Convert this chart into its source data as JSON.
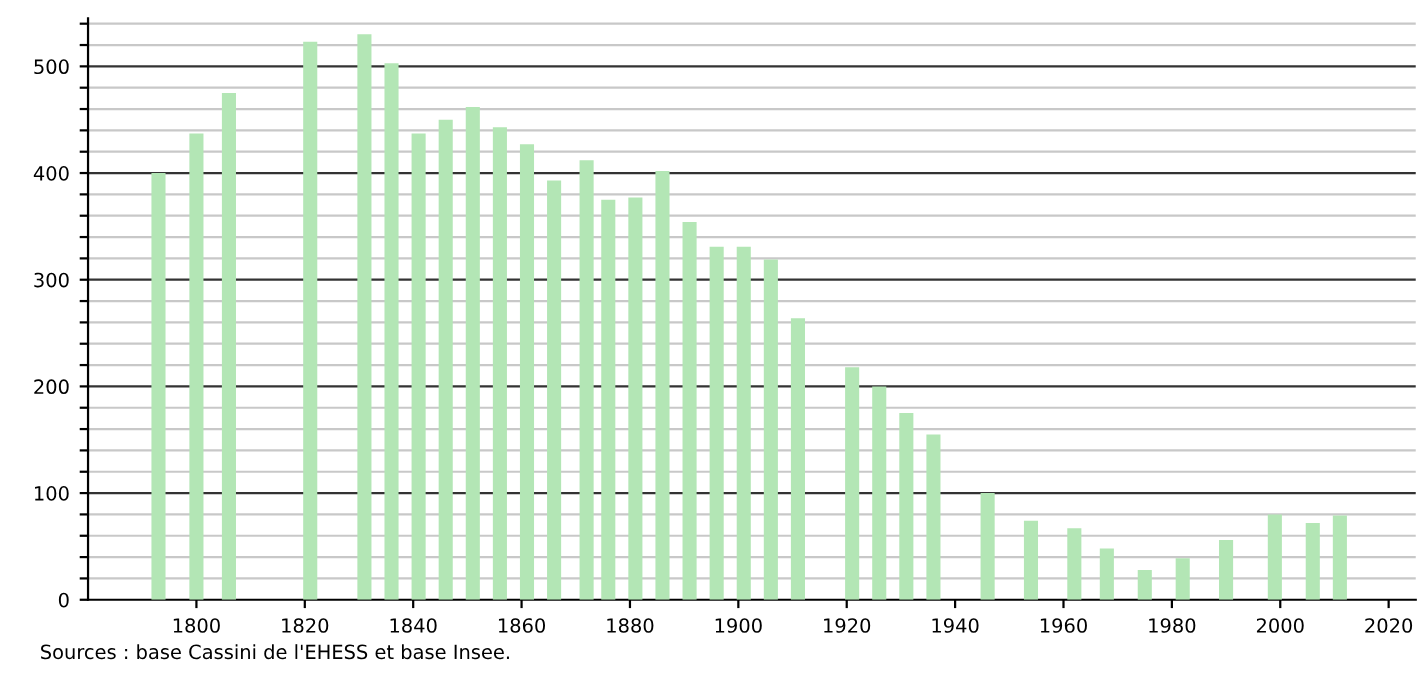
{
  "chart_data": {
    "type": "bar",
    "color": "#b3e6b5",
    "x": [
      1793,
      1800,
      1806,
      1821,
      1831,
      1836,
      1841,
      1846,
      1851,
      1856,
      1861,
      1866,
      1872,
      1876,
      1881,
      1886,
      1891,
      1896,
      1901,
      1906,
      1911,
      1921,
      1926,
      1931,
      1936,
      1946,
      1954,
      1962,
      1968,
      1975,
      1982,
      1990,
      1999,
      2006,
      2011
    ],
    "values": [
      400,
      437,
      475,
      523,
      530,
      503,
      437,
      450,
      462,
      443,
      427,
      393,
      412,
      375,
      377,
      402,
      354,
      331,
      331,
      319,
      264,
      218,
      200,
      175,
      155,
      100,
      74,
      67,
      48,
      28,
      39,
      56,
      80,
      72,
      79
    ],
    "xlim": [
      1780,
      2025
    ],
    "xticks": [
      1800,
      1820,
      1840,
      1860,
      1880,
      1900,
      1920,
      1940,
      1960,
      1980,
      2000,
      2020
    ],
    "ylim": [
      0,
      545
    ],
    "yticks": [
      0,
      {
        "value": 20,
        "label": null
      },
      {
        "value": 40,
        "label": null
      },
      {
        "value": 60,
        "label": null
      },
      {
        "value": 80,
        "label": null
      },
      100,
      {
        "value": 120,
        "label": null
      },
      {
        "value": 140,
        "label": null
      },
      {
        "value": 160,
        "label": null
      },
      {
        "value": 180,
        "label": null
      },
      200,
      {
        "value": 220,
        "label": null
      },
      {
        "value": 240,
        "label": null
      },
      {
        "value": 260,
        "label": null
      },
      {
        "value": 280,
        "label": null
      },
      300,
      {
        "value": 320,
        "label": null
      },
      {
        "value": 340,
        "label": null
      },
      {
        "value": 360,
        "label": null
      },
      {
        "value": 380,
        "label": null
      },
      400,
      {
        "value": 420,
        "label": null
      },
      {
        "value": 440,
        "label": null
      },
      {
        "value": 460,
        "label": null
      },
      {
        "value": 480,
        "label": null
      },
      500,
      {
        "value": 520,
        "label": null
      },
      {
        "value": 540,
        "label": null
      }
    ],
    "grid": "y",
    "annotations": [
      "Sources : base Cassini de l'EHESS et base Insee."
    ]
  }
}
